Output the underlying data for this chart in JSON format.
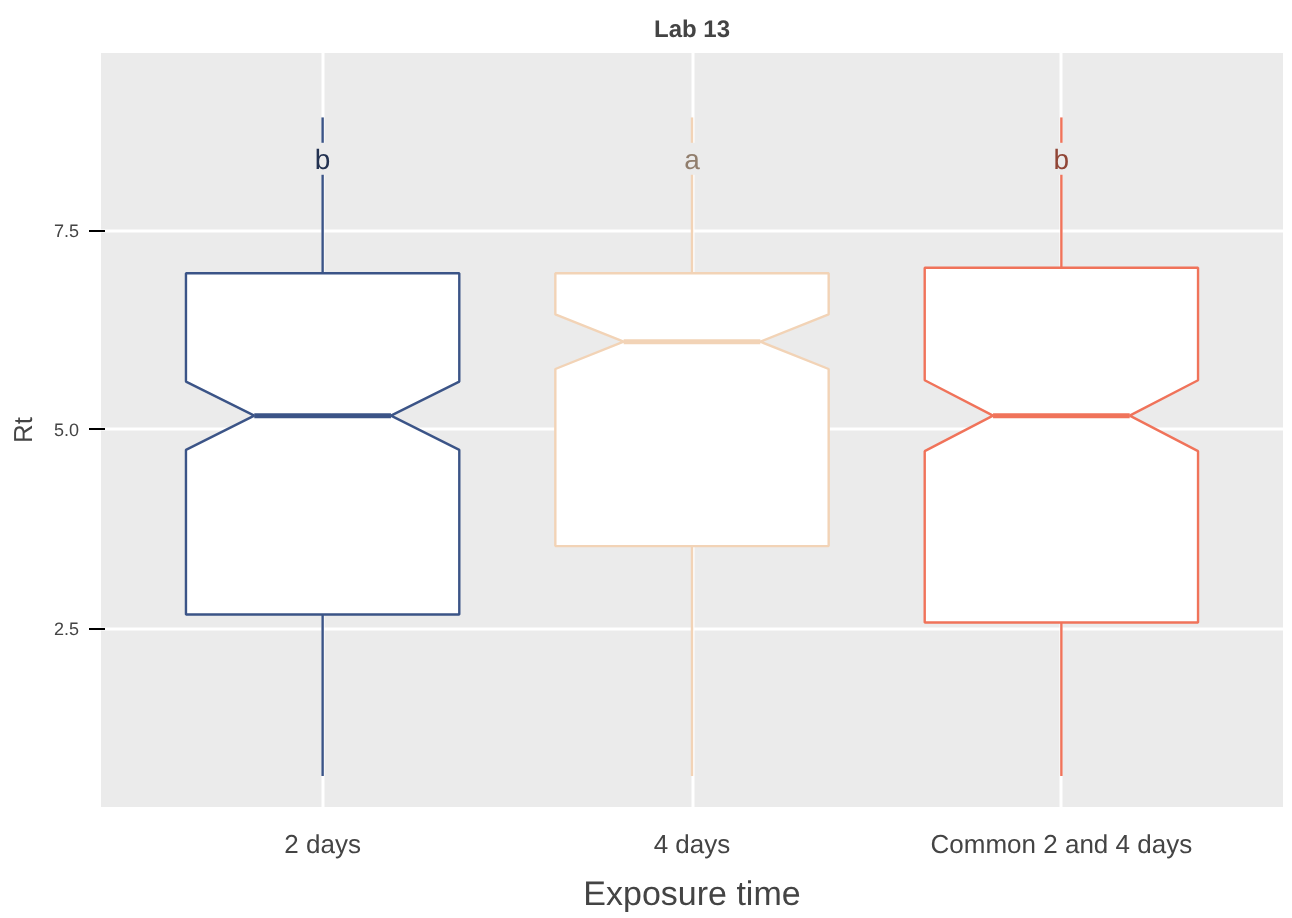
{
  "chart_data": {
    "type": "box",
    "title": "Lab 13",
    "xlabel": "Exposure time",
    "ylabel": "Rt",
    "categories": [
      "2 days",
      "4 days",
      "Common 2 and 4 days"
    ],
    "colors": [
      "#3b5487",
      "#f2d3b6",
      "#f0735a"
    ],
    "boxes": [
      {
        "low": 0.64,
        "q1": 2.67,
        "median": 5.17,
        "q3": 6.96,
        "high": 8.92
      },
      {
        "low": 0.64,
        "q1": 3.53,
        "median": 6.1,
        "q3": 6.96,
        "high": 8.92
      },
      {
        "low": 0.64,
        "q1": 2.57,
        "median": 5.17,
        "q3": 7.03,
        "high": 8.92
      }
    ],
    "ylim": [
      0.25,
      9.73
    ],
    "yticks": [
      2.5,
      {
        "value": 5.0,
        "label": "5.0"
      },
      7.5
    ],
    "grid": true,
    "annotations": [
      {
        "text": "b",
        "x": "2 days",
        "y": 8.4
      },
      {
        "text": "a",
        "x": "4 days",
        "y": 8.4
      },
      {
        "text": "b",
        "x": "Common 2 and 4 days",
        "y": 8.4
      }
    ]
  }
}
